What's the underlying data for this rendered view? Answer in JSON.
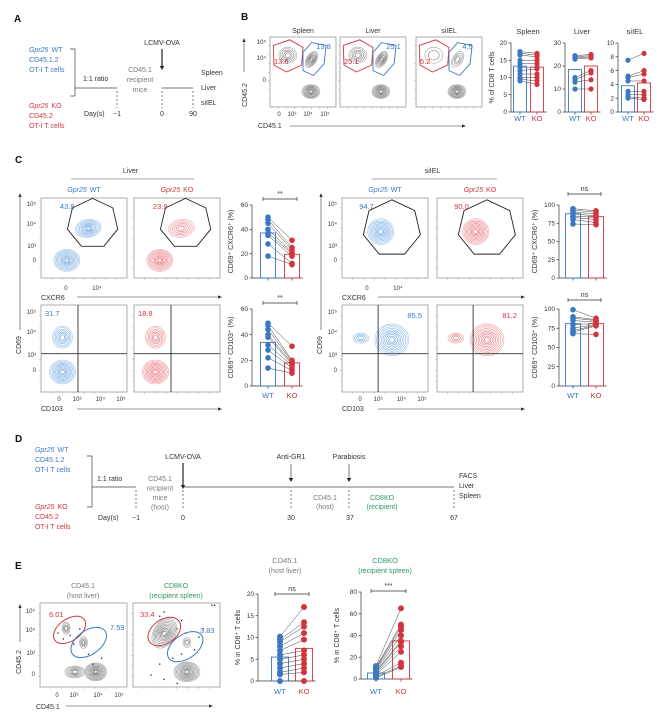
{
  "colors": {
    "wt": "#3a78c2",
    "ko": "#d2343e",
    "green": "#2b9a5b",
    "gray": "#7a7a7a",
    "dark": "#222222",
    "contour_wt": "#4a90d9",
    "contour_ko": "#e0505a",
    "contour_gray": "#555555"
  },
  "panels": {
    "a": "A",
    "b": "B",
    "c": "C",
    "d": "D",
    "e": "E"
  },
  "panel_a": {
    "wt": {
      "gene": "Gpr25",
      "genotype": "WT",
      "l2": "CD45.1.2",
      "l3": "OT-I T cells"
    },
    "ko": {
      "gene": "Gpr25",
      "genotype": "KO",
      "l2": "CD45.2",
      "l3": "OT-I T cells"
    },
    "ratio": "1:1 ratio",
    "recipient": [
      "CD45.1",
      "recipient",
      "mice"
    ],
    "infection": "LCMV-OVA",
    "day_label": "Day(s)",
    "days": [
      "−1",
      "0",
      "90"
    ],
    "tissues": [
      "Spleen",
      "Liver",
      "siIEL"
    ]
  },
  "panel_b": {
    "flow": [
      {
        "title": "Spleen",
        "blue": "13.8",
        "red": "13.6"
      },
      {
        "title": "Liver",
        "blue": "25.1",
        "red": "25.1"
      },
      {
        "title": "siIEL",
        "blue": "4.5",
        "red": "5.2"
      }
    ],
    "y_axis": "CD45.2",
    "x_axis": "CD45.1",
    "y_ticks": [
      "10⁵",
      "10⁴",
      "0"
    ],
    "x_ticks": [
      "0",
      "10³",
      "10⁴",
      "10⁵"
    ]
  },
  "panel_c": {
    "groups": [
      {
        "title": "Liver",
        "wt_cxcr6": "43.8",
        "ko_cxcr6": "23.9",
        "wt_cd103": "31.7",
        "ko_cd103": "18.8"
      },
      {
        "title": "siIEL",
        "wt_cxcr6": "94.7",
        "ko_cxcr6": "90.0",
        "wt_cd103": "85.5",
        "ko_cd103": "81.2"
      }
    ],
    "wt_header": {
      "gene": "Gpr25",
      "genotype": "WT"
    },
    "ko_header": {
      "gene": "Gpr25",
      "genotype": "KO"
    },
    "y_axis": "CD69",
    "x_axis_top": "CXCR6",
    "x_axis_bottom": "CD103",
    "y_ticks": [
      "10⁵",
      "10⁴",
      "10³",
      "0"
    ],
    "x_ticks_top": [
      "0",
      "10⁴"
    ],
    "x_ticks_bottom": [
      "0",
      "10³",
      "10⁴",
      "10⁵"
    ]
  },
  "panel_d": {
    "wt": {
      "gene": "Gpr25",
      "genotype": "WT",
      "l2": "CD45.1.2",
      "l3": "OT-I T cells"
    },
    "ko": {
      "gene": "Gpr25",
      "genotype": "KO",
      "l2": "CD45.2",
      "l3": "OT-I T cells"
    },
    "ratio": "1:1 ratio",
    "recipient": [
      "CD45.1",
      "recipient",
      "mice",
      "(host)"
    ],
    "events": [
      "LCMV-OVA",
      "Anti-GR1",
      "Parabiosis"
    ],
    "host": [
      "CD45.1",
      "(host)"
    ],
    "partner": [
      "CD8KO",
      "(recipient)"
    ],
    "readout": [
      "FACS",
      "Liver",
      "Spleen"
    ],
    "day_label": "Day(s)",
    "days": [
      "−1",
      "0",
      "30",
      "37",
      "67"
    ]
  },
  "panel_e": {
    "flow": [
      {
        "title": "CD45.1",
        "subtitle": "(host liver)",
        "red": "6.01",
        "blue": "7.59"
      },
      {
        "title": "CD8KO",
        "subtitle": "(recipient spleen)",
        "red": "33.4",
        "blue": "3.83"
      }
    ],
    "y_axis": "CD45.2",
    "x_axis": "CD45.1",
    "y_ticks": [
      "10⁵",
      "10⁴",
      "10³",
      "0"
    ],
    "x_ticks": [
      "0",
      "10³",
      "10⁴",
      "10⁵"
    ]
  },
  "chart_data": [
    {
      "type": "bar+scatter",
      "title": "Spleen",
      "ylabel": "% of CD8 T cells",
      "ylim": [
        0,
        20
      ],
      "yticks": [
        0,
        5,
        10,
        15,
        20
      ],
      "categories": [
        "WT",
        "KO"
      ],
      "bar_values": [
        13.3,
        13.0
      ],
      "series": [
        {
          "name": "WT",
          "values": [
            17.5,
            17,
            16.5,
            15,
            14,
            13,
            12,
            11,
            10,
            9.5,
            9
          ]
        },
        {
          "name": "KO",
          "values": [
            17,
            16.5,
            16,
            15,
            14,
            13,
            12.5,
            11,
            10,
            9,
            8
          ]
        }
      ]
    },
    {
      "type": "bar+scatter",
      "title": "Liver",
      "ylim": [
        0,
        30
      ],
      "yticks": [
        0,
        10,
        20,
        30
      ],
      "categories": [
        "WT",
        "KO"
      ],
      "bar_values": [
        18.5,
        20
      ],
      "series": [
        {
          "name": "WT",
          "values": [
            24.5,
            24,
            23.5,
            23,
            15,
            14,
            13,
            10
          ]
        },
        {
          "name": "KO",
          "values": [
            25,
            24.5,
            24,
            23.5,
            18,
            17,
            14,
            10
          ]
        }
      ]
    },
    {
      "type": "bar+scatter",
      "title": "siIEL",
      "ylim": [
        0,
        10
      ],
      "yticks": [
        0,
        2,
        4,
        6,
        8,
        10
      ],
      "categories": [
        "WT",
        "KO"
      ],
      "bar_values": [
        3.8,
        4.2
      ],
      "series": [
        {
          "name": "WT",
          "values": [
            7.5,
            5.2,
            5,
            4.5,
            3,
            2.5,
            2.2,
            2
          ]
        },
        {
          "name": "KO",
          "values": [
            8.5,
            6,
            5.5,
            4.5,
            3,
            2.5,
            2,
            1.8
          ]
        }
      ]
    },
    {
      "type": "bar+scatter",
      "ylabel": "CD69⁺ CXCR6⁺ (%)",
      "ylim": [
        0,
        60
      ],
      "yticks": [
        0,
        20,
        40,
        60
      ],
      "significance": "**",
      "categories": [
        "WT",
        "KO"
      ],
      "bar_values": [
        37,
        19.5
      ],
      "series": [
        {
          "name": "WT",
          "values": [
            50,
            48,
            45,
            40,
            37,
            35,
            28,
            18
          ]
        },
        {
          "name": "KO",
          "values": [
            31,
            25,
            23,
            21,
            20,
            18,
            12,
            11
          ]
        }
      ]
    },
    {
      "type": "bar+scatter",
      "ylabel": "CD69⁺ CXCR6⁺ (%)",
      "ylim": [
        0,
        100
      ],
      "yticks": [
        0,
        25,
        50,
        75,
        100
      ],
      "significance": "ns",
      "categories": [
        "WT",
        "KO"
      ],
      "bar_values": [
        88,
        84
      ],
      "series": [
        {
          "name": "WT",
          "values": [
            95,
            93,
            90,
            88,
            85,
            83,
            80,
            74
          ]
        },
        {
          "name": "KO",
          "values": [
            92,
            90,
            88,
            85,
            83,
            80,
            76,
            73
          ]
        }
      ]
    },
    {
      "type": "bar+scatter",
      "ylabel": "CD69⁺ CD103⁺ (%)",
      "ylim": [
        0,
        60
      ],
      "yticks": [
        0,
        20,
        40,
        60
      ],
      "significance": "**",
      "categories": [
        "WT",
        "KO"
      ],
      "bar_values": [
        34,
        18
      ],
      "series": [
        {
          "name": "WT",
          "values": [
            49,
            47,
            44,
            40,
            38,
            32,
            28,
            22,
            14
          ]
        },
        {
          "name": "KO",
          "values": [
            31,
            20,
            19,
            18,
            17,
            16,
            14,
            12,
            10
          ]
        }
      ]
    },
    {
      "type": "bar+scatter",
      "ylabel": "CD69⁺ CD103⁺ (%)",
      "ylim": [
        0,
        100
      ],
      "yticks": [
        0,
        25,
        50,
        75,
        100
      ],
      "significance": "ns",
      "categories": [
        "WT",
        "KO"
      ],
      "bar_values": [
        81,
        81
      ],
      "series": [
        {
          "name": "WT",
          "values": [
            99,
            90,
            88,
            85,
            80,
            75,
            72,
            70,
            68
          ]
        },
        {
          "name": "KO",
          "values": [
            88,
            86,
            85,
            83,
            81,
            80,
            79,
            78,
            67
          ]
        }
      ]
    },
    {
      "type": "bar+scatter",
      "title": "CD45.1",
      "subtitle": "(host liver)",
      "title_color": "#7a7a7a",
      "ylabel": "% in CD8⁺ T cells",
      "ylim": [
        0,
        20
      ],
      "yticks": [
        0,
        5,
        10,
        15,
        20
      ],
      "significance": "ns",
      "categories": [
        "WT",
        "KO"
      ],
      "bar_values": [
        5.5,
        7.5
      ],
      "series": [
        {
          "name": "WT",
          "values": [
            10.2,
            9.5,
            9,
            8,
            7,
            6,
            5,
            4,
            3,
            2,
            1.5,
            0
          ]
        },
        {
          "name": "KO",
          "values": [
            17,
            13.5,
            12.5,
            11,
            9.5,
            7,
            6,
            5,
            4,
            3,
            2,
            0
          ]
        }
      ]
    },
    {
      "type": "bar+scatter",
      "title": "CD8KO",
      "subtitle": "(recipient spleen)",
      "title_color": "#2b9a5b",
      "ylabel": "% in CD8⁺ T cells",
      "ylim": [
        0,
        80
      ],
      "yticks": [
        0,
        20,
        40,
        60,
        80
      ],
      "significance": "***",
      "categories": [
        "WT",
        "KO"
      ],
      "bar_values": [
        5.5,
        35
      ],
      "series": [
        {
          "name": "WT",
          "values": [
            12,
            11,
            10,
            9,
            8,
            7,
            6,
            5,
            4,
            3,
            2,
            1
          ]
        },
        {
          "name": "KO",
          "values": [
            65,
            50,
            48,
            45,
            40,
            35,
            34,
            30,
            25,
            15,
            12,
            11
          ]
        }
      ]
    }
  ]
}
